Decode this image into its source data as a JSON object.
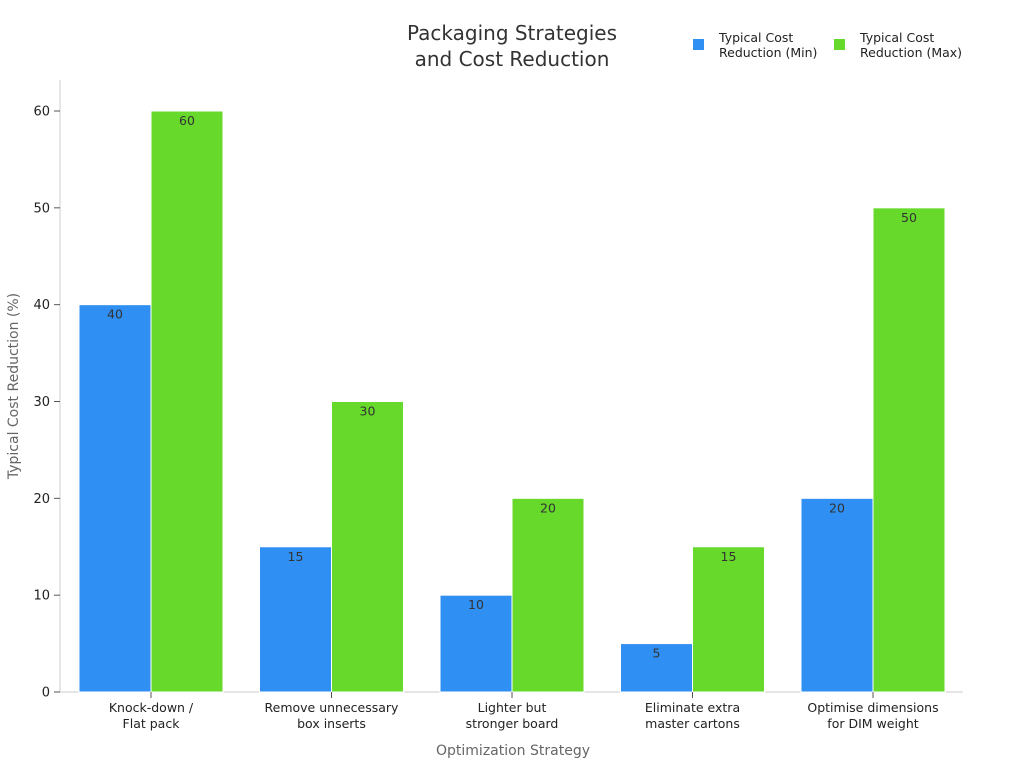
{
  "chart_data": {
    "type": "bar",
    "title": [
      "Packaging Strategies",
      "and Cost Reduction"
    ],
    "xlabel": "Optimization Strategy",
    "ylabel": "Typical Cost Reduction (%)",
    "ylim": [
      0,
      63
    ],
    "yticks": [
      0,
      10,
      20,
      30,
      40,
      50,
      60
    ],
    "categories": [
      [
        "Knock-down /",
        "Flat pack"
      ],
      [
        "Remove unnecessary",
        "box inserts"
      ],
      [
        "Lighter but",
        "stronger board"
      ],
      [
        "Eliminate extra",
        "master cartons"
      ],
      [
        "Optimise dimensions",
        "for DIM weight"
      ]
    ],
    "series": [
      {
        "name": [
          "Typical Cost",
          "Reduction (Min)"
        ],
        "color": "#2f8ff2",
        "values": [
          40,
          15,
          10,
          5,
          20
        ]
      },
      {
        "name": [
          "Typical Cost",
          "Reduction (Max)"
        ],
        "color": "#66d92a",
        "values": [
          60,
          30,
          20,
          15,
          50
        ]
      }
    ],
    "grid": false,
    "legend_position": "top-right"
  }
}
